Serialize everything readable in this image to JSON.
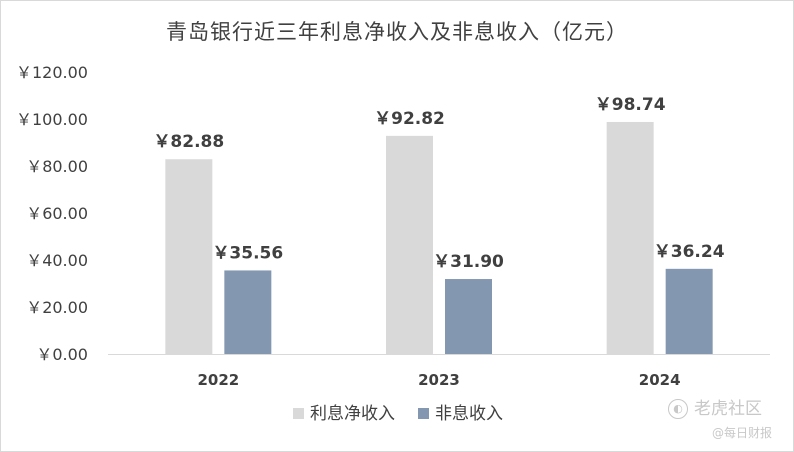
{
  "chart_data": {
    "type": "bar",
    "title": "青岛银行近三年利息净收入及非息收入（亿元）",
    "categories": [
      "2022",
      "2023",
      "2024"
    ],
    "series": [
      {
        "name": "利息净收入",
        "values": [
          82.88,
          92.82,
          98.74
        ],
        "color": "#d9d9d9",
        "labels": [
          "￥82.88",
          "￥92.82",
          "￥98.74"
        ]
      },
      {
        "name": "非息收入",
        "values": [
          35.56,
          31.9,
          36.24
        ],
        "color": "#8497b0",
        "labels": [
          "￥35.56",
          "￥31.90",
          "￥36.24"
        ]
      }
    ],
    "ylim": [
      0,
      120
    ],
    "yticks": [
      0,
      20,
      40,
      60,
      80,
      100,
      120
    ],
    "ytick_labels": [
      "￥0.00",
      "￥20.00",
      "￥40.00",
      "￥60.00",
      "￥80.00",
      "￥100.00",
      "￥120.00"
    ],
    "grid": false,
    "legend": "bottom"
  },
  "watermark": {
    "line1": "老虎社区",
    "line2": "@每日财报",
    "icon": "tiger-logo-icon"
  }
}
